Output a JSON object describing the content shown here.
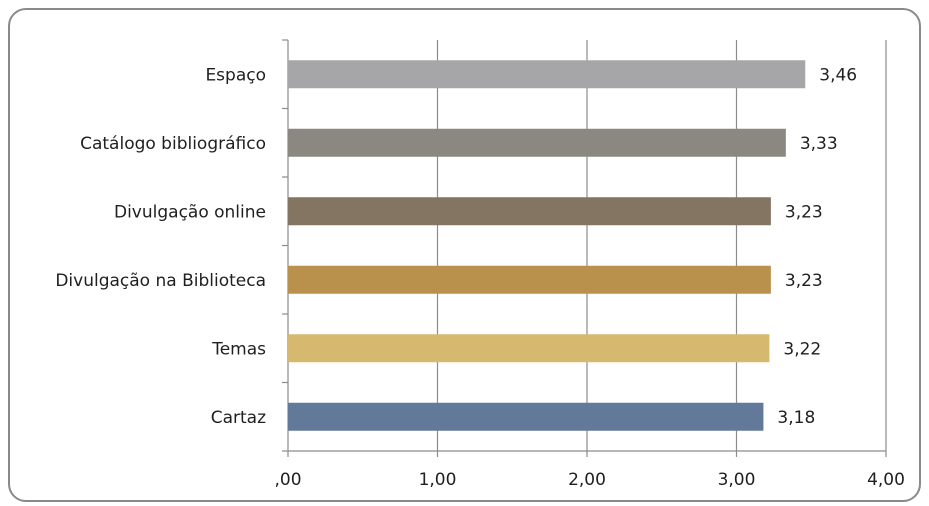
{
  "chart_data": {
    "type": "bar",
    "orientation": "horizontal",
    "categories": [
      "Espaço",
      "Catálogo bibliográfico",
      "Divulgação online",
      "Divulgação na Biblioteca",
      "Temas",
      "Cartaz"
    ],
    "values": [
      3.46,
      3.33,
      3.23,
      3.23,
      3.22,
      3.18
    ],
    "value_labels": [
      "3,46",
      "3,33",
      "3,23",
      "3,23",
      "3,22",
      "3,18"
    ],
    "bar_colors": [
      "#a6a6a8",
      "#8b8882",
      "#847563",
      "#b9914c",
      "#d6b96e",
      "#63799a"
    ],
    "title": "",
    "xlabel": "",
    "ylabel": "",
    "xlim": [
      0,
      4
    ],
    "x_ticks": [
      0,
      1,
      2,
      3,
      4
    ],
    "x_tick_labels": [
      ",00",
      "1,00",
      "2,00",
      "3,00",
      "4,00"
    ],
    "grid": "vertical major gridlines",
    "legend": "none"
  }
}
